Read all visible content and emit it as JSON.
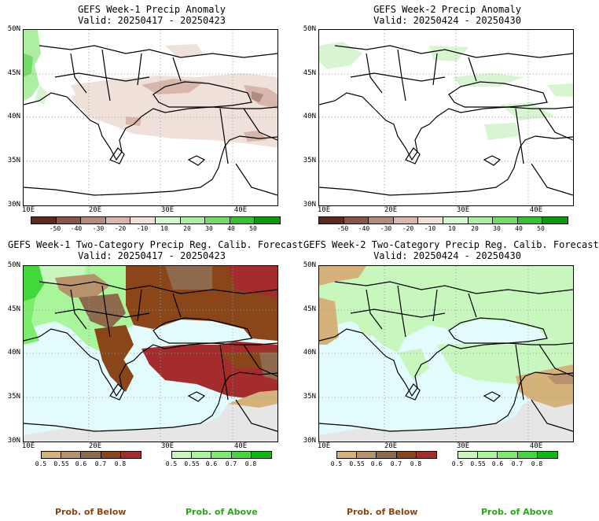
{
  "colors": {
    "dry": [
      "#5a2a22",
      "#8a5548",
      "#b28a80",
      "#d7b7ac",
      "#efe0da"
    ],
    "wet": [
      "#d8f5d2",
      "#aeeea3",
      "#72dc66",
      "#35c22e",
      "#0b9a0e"
    ],
    "below": [
      "#d6b27b",
      "#b8926a",
      "#8e6a4c",
      "#8a4518",
      "#a52c2c"
    ],
    "above": [
      "#c7f7bd",
      "#a8f59a",
      "#7ced6b",
      "#42d83c",
      "#0fb80f"
    ],
    "sea": "#e2fbfd",
    "land_grey": "#e6e6e6",
    "prob_below": "#8b4513",
    "prob_above": "#2aa81a"
  },
  "panels": [
    {
      "title": "GEFS Week-1 Precip Anomaly",
      "valid": "Valid: 20250417 - 20250423",
      "type": "anomaly",
      "lat_labels": [
        "50N",
        "45N",
        "40N",
        "35N",
        "30N"
      ],
      "lon_labels": [
        "10E",
        "20E",
        "30E",
        "40E"
      ],
      "cbar_labels": [
        "-50",
        "-40",
        "-30",
        "-20",
        "-10",
        "10",
        "20",
        "30",
        "40",
        "50"
      ]
    },
    {
      "title": "GEFS Week-2 Precip Anomaly",
      "valid": "Valid: 20250424 - 20250430",
      "type": "anomaly",
      "lat_labels": [
        "50N",
        "45N",
        "40N",
        "35N",
        "30N"
      ],
      "lon_labels": [
        "10E",
        "20E",
        "30E",
        "40E"
      ],
      "cbar_labels": [
        "-50",
        "-40",
        "-30",
        "-20",
        "-10",
        "10",
        "20",
        "30",
        "40",
        "50"
      ]
    },
    {
      "title": "GEFS Week-1 Two-Category Precip Reg. Calib. Forecast",
      "valid": "Valid: 20250417 - 20250423",
      "type": "prob",
      "lat_labels": [
        "50N",
        "45N",
        "40N",
        "35N",
        "30N"
      ],
      "lon_labels": [
        "10E",
        "20E",
        "30E",
        "40E"
      ],
      "cbar_below_labels": [
        "0.5",
        "0.55",
        "0.6",
        "0.7",
        "0.8"
      ],
      "cbar_above_labels": [
        "0.5",
        "0.55",
        "0.6",
        "0.7",
        "0.8"
      ],
      "prob_below": "Prob. of Below",
      "prob_above": "Prob. of Above"
    },
    {
      "title": "GEFS Week-2 Two-Category Precip Reg. Calib. Forecast",
      "valid": "Valid: 20250424 - 20250430",
      "type": "prob",
      "lat_labels": [
        "50N",
        "45N",
        "40N",
        "35N",
        "30N"
      ],
      "lon_labels": [
        "10E",
        "20E",
        "30E",
        "40E"
      ],
      "cbar_below_labels": [
        "0.5",
        "0.55",
        "0.6",
        "0.7",
        "0.8"
      ],
      "cbar_above_labels": [
        "0.5",
        "0.55",
        "0.6",
        "0.7",
        "0.8"
      ],
      "prob_below": "Prob. of Below",
      "prob_above": "Prob. of Above"
    }
  ]
}
